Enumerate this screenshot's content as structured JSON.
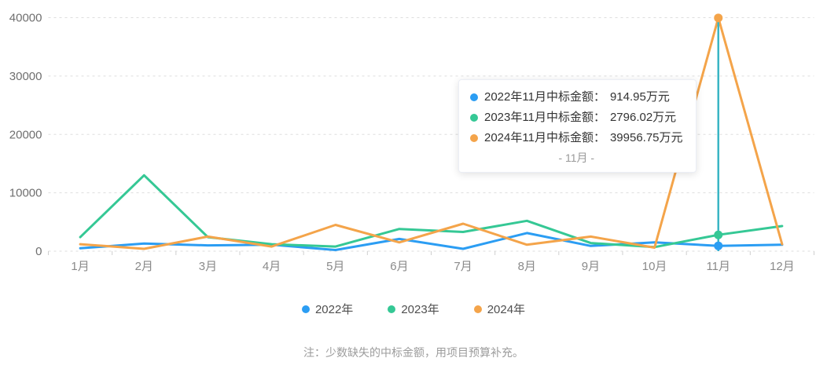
{
  "chart_data": {
    "type": "line",
    "title": "",
    "xlabel": "",
    "ylabel": "",
    "categories": [
      "1月",
      "2月",
      "3月",
      "4月",
      "5月",
      "6月",
      "7月",
      "8月",
      "9月",
      "10月",
      "11月",
      "12月"
    ],
    "series": [
      {
        "name": "2022年",
        "color": "#2b9df3",
        "values": [
          500,
          1300,
          1000,
          1100,
          200,
          2100,
          400,
          3100,
          900,
          1500,
          914.95,
          1100
        ]
      },
      {
        "name": "2023年",
        "color": "#35c895",
        "values": [
          2400,
          13000,
          2400,
          1200,
          800,
          3800,
          3300,
          5200,
          1400,
          700,
          2796.02,
          4300
        ]
      },
      {
        "name": "2024年",
        "color": "#f4a44a",
        "values": [
          1200,
          400,
          2500,
          800,
          4500,
          1500,
          4700,
          1100,
          2500,
          600,
          39956.75,
          1200
        ]
      }
    ],
    "ylim": [
      0,
      40000
    ],
    "y_ticks": [
      0,
      10000,
      20000,
      30000,
      40000
    ],
    "y_tick_labels": [
      "0",
      "10000",
      "20000",
      "30000",
      "40000"
    ],
    "grid": "horizontal dashed",
    "legend_position": "bottom",
    "highlight_index": 10,
    "axis_pointer_color": "#3ab5c4"
  },
  "tooltip": {
    "rows": [
      {
        "label": "2022年11月中标金额：",
        "value": "914.95万元",
        "color": "#2b9df3"
      },
      {
        "label": "2023年11月中标金额：",
        "value": "2796.02万元",
        "color": "#35c895"
      },
      {
        "label": "2024年11月中标金额：",
        "value": "39956.75万元",
        "color": "#f4a44a"
      }
    ],
    "footer": "- 11月 -"
  },
  "legend": {
    "items": [
      {
        "label": "2022年",
        "color": "#2b9df3"
      },
      {
        "label": "2023年",
        "color": "#35c895"
      },
      {
        "label": "2024年",
        "color": "#f4a44a"
      }
    ]
  },
  "note": "注：少数缺失的中标金额，用项目预算补充。"
}
